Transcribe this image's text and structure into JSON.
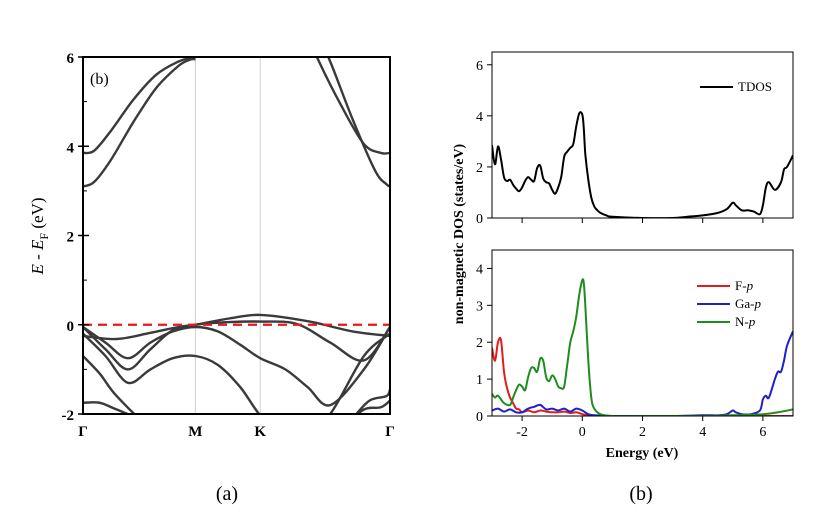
{
  "captions": [
    "(a)",
    "(b)"
  ],
  "chart_data": [
    {
      "type": "line",
      "panel_label": "(b)",
      "ylabel": "E - E_F (eV)",
      "ylabel_parts": [
        "E",
        " - ",
        "E",
        "F",
        " (eV)"
      ],
      "ylim": [
        -2,
        6
      ],
      "yticks": [
        "-2",
        "0",
        "2",
        "4",
        "6"
      ],
      "xticks": [
        {
          "label": "Γ",
          "k": 0
        },
        {
          "label": "M",
          "k": 1
        },
        {
          "label": "K",
          "k": 1.577
        },
        {
          "label": "Γ",
          "k": 2.732
        }
      ],
      "fermi_level": 0,
      "grid": false,
      "bands": [
        {
          "k": [
            0,
            0.3,
            0.6,
            0.85,
            1.0,
            1.3,
            1.577,
            2.0,
            2.4,
            2.732
          ],
          "e": [
            -0.25,
            -0.32,
            -0.18,
            -0.05,
            0.0,
            0.14,
            0.22,
            0.08,
            -0.15,
            -0.25
          ]
        },
        {
          "k": [
            0,
            0.2,
            0.4,
            0.6,
            0.8,
            1.0,
            1.3,
            1.577,
            1.9,
            2.2,
            2.5,
            2.732
          ],
          "e": [
            -0.05,
            -0.55,
            -1.0,
            -0.55,
            -0.12,
            0.0,
            0.06,
            0.07,
            0.02,
            -0.4,
            -0.8,
            -0.05
          ]
        },
        {
          "k": [
            0,
            0.2,
            0.4,
            0.6,
            0.8,
            1.0,
            1.2,
            1.4,
            1.577,
            1.8,
            2.0,
            2.2,
            2.5,
            2.732
          ],
          "e": [
            -0.05,
            -0.4,
            -0.75,
            -0.4,
            -0.15,
            -0.05,
            -0.15,
            -0.45,
            -0.75,
            -1.0,
            -1.4,
            -1.8,
            -1.0,
            -0.05
          ]
        },
        {
          "k": [
            0,
            0.2,
            0.4,
            0.6,
            0.8,
            1.0,
            1.2,
            1.4,
            1.6,
            1.8,
            2.0,
            2.2,
            2.5,
            2.732
          ],
          "e": [
            -0.2,
            -0.7,
            -1.3,
            -1.0,
            -0.75,
            -0.7,
            -0.9,
            -1.4,
            -2.1,
            -2.4,
            -2.3,
            -2.0,
            -0.7,
            -0.2
          ]
        },
        {
          "k": [
            0,
            0.15,
            0.3,
            0.6,
            0.9,
            1.0,
            1.1,
            1.3,
            1.45
          ],
          "e": [
            -0.7,
            -1.1,
            -1.6,
            -2.3,
            -2.6,
            -2.6,
            -2.45,
            -2.2,
            -2.6
          ]
        },
        {
          "k": [
            0,
            0.15,
            0.3,
            0.6,
            0.9,
            1.0,
            1.1,
            1.35
          ],
          "e": [
            -1.75,
            -1.75,
            -1.9,
            -2.2,
            -2.4,
            -2.4,
            -2.2,
            -2.6
          ]
        },
        {
          "k": [
            0,
            0.12,
            0.25
          ],
          "e": [
            -2.3,
            -2.2,
            -2.6
          ]
        },
        {
          "k": [
            2.1,
            2.3,
            2.5,
            2.65,
            2.732
          ],
          "e": [
            -2.6,
            -2.3,
            -1.9,
            -1.85,
            -1.7
          ]
        },
        {
          "k": [
            2.25,
            2.4,
            2.55,
            2.7,
            2.732
          ],
          "e": [
            -2.6,
            -2.1,
            -1.7,
            -1.6,
            -1.45
          ]
        },
        {
          "k": [
            0,
            0.1,
            0.25,
            0.45,
            0.65,
            0.85,
            0.95,
            1.0
          ],
          "e": [
            3.85,
            3.9,
            4.35,
            5.05,
            5.6,
            5.9,
            5.97,
            5.97
          ]
        },
        {
          "k": [
            0,
            0.1,
            0.25,
            0.45,
            0.65,
            0.85,
            0.95,
            1.0
          ],
          "e": [
            3.1,
            3.2,
            3.7,
            4.55,
            5.3,
            5.8,
            5.94,
            5.95
          ]
        },
        {
          "k": [
            2.02,
            2.1,
            2.3,
            2.5,
            2.65,
            2.732
          ],
          "e": [
            6.4,
            5.9,
            4.9,
            4.05,
            3.85,
            3.85
          ]
        },
        {
          "k": [
            2.1,
            2.2,
            2.4,
            2.6,
            2.7,
            2.732
          ],
          "e": [
            6.4,
            5.9,
            4.6,
            3.45,
            3.15,
            3.1
          ]
        }
      ]
    },
    {
      "type": "line",
      "xlabel": "Energy (eV)",
      "ylabel": "non-magnetic DOS (states/eV)",
      "xlim": [
        -3,
        7
      ],
      "xticks": [
        "-2",
        "0",
        "2",
        "4",
        "6"
      ],
      "grid": false,
      "top": {
        "ylim": [
          0,
          6.5
        ],
        "yticks": [
          "0",
          "2",
          "4",
          "6"
        ],
        "legend_position": "top-right",
        "series": [
          {
            "name": "TDOS",
            "color": "#000000",
            "x": [
              -3.0,
              -2.9,
              -2.8,
              -2.7,
              -2.6,
              -2.5,
              -2.4,
              -2.3,
              -2.2,
              -2.1,
              -2.0,
              -1.9,
              -1.8,
              -1.7,
              -1.6,
              -1.5,
              -1.4,
              -1.3,
              -1.2,
              -1.1,
              -1.0,
              -0.9,
              -0.8,
              -0.7,
              -0.6,
              -0.5,
              -0.4,
              -0.3,
              -0.2,
              -0.1,
              0.0,
              0.05,
              0.1,
              0.2,
              0.3,
              0.4,
              0.5,
              0.6,
              0.8,
              1.0,
              2.0,
              3.0,
              3.5,
              4.0,
              4.5,
              4.8,
              5.0,
              5.1,
              5.3,
              5.5,
              5.7,
              5.9,
              6.0,
              6.1,
              6.2,
              6.4,
              6.6,
              6.7,
              6.8,
              7.0
            ],
            "y": [
              2.85,
              2.1,
              2.8,
              2.3,
              1.6,
              1.45,
              1.5,
              1.3,
              1.15,
              1.05,
              1.2,
              1.45,
              1.6,
              1.5,
              1.45,
              1.95,
              2.05,
              1.55,
              1.4,
              1.35,
              1.1,
              0.95,
              1.2,
              1.6,
              2.4,
              2.6,
              2.75,
              2.9,
              3.6,
              4.1,
              4.05,
              3.5,
              2.5,
              1.5,
              0.8,
              0.45,
              0.3,
              0.2,
              0.1,
              0.05,
              0.0,
              0.0,
              0.05,
              0.1,
              0.2,
              0.35,
              0.6,
              0.5,
              0.3,
              0.3,
              0.25,
              0.15,
              0.5,
              1.2,
              1.4,
              1.1,
              1.4,
              1.9,
              2.0,
              2.45
            ]
          }
        ]
      },
      "bottom": {
        "ylim": [
          0,
          4.5
        ],
        "yticks": [
          "0",
          "1",
          "2",
          "3",
          "4"
        ],
        "legend_position": "right",
        "series": [
          {
            "name": "F-p",
            "name_parts": [
              "F-",
              "p"
            ],
            "color": "#e41a1c",
            "x": [
              -3.0,
              -2.9,
              -2.8,
              -2.7,
              -2.6,
              -2.5,
              -2.4,
              -2.3,
              -2.2,
              -2.1,
              -2.0,
              -1.8,
              -1.6,
              -1.4,
              -1.2,
              -1.0,
              -0.8,
              -0.6,
              -0.4,
              -0.2,
              0.0,
              0.2,
              0.4,
              1.0,
              3.0,
              7.0
            ],
            "y": [
              1.85,
              1.5,
              2.0,
              2.05,
              1.2,
              0.75,
              0.5,
              0.35,
              0.2,
              0.18,
              0.1,
              0.15,
              0.1,
              0.15,
              0.12,
              0.1,
              0.1,
              0.12,
              0.08,
              0.1,
              0.05,
              0.02,
              0.0,
              0.0,
              0.0,
              0.0
            ]
          },
          {
            "name": "Ga-p",
            "name_parts": [
              "Ga-",
              "p"
            ],
            "color": "#1f1fcc",
            "x": [
              -3.0,
              -2.8,
              -2.6,
              -2.4,
              -2.2,
              -2.0,
              -1.8,
              -1.6,
              -1.4,
              -1.2,
              -1.0,
              -0.8,
              -0.6,
              -0.4,
              -0.2,
              0.0,
              0.2,
              0.4,
              1.0,
              2.0,
              3.0,
              4.0,
              4.5,
              4.8,
              5.0,
              5.1,
              5.3,
              5.6,
              5.9,
              6.0,
              6.1,
              6.2,
              6.4,
              6.5,
              6.6,
              6.7,
              6.8,
              7.0
            ],
            "y": [
              0.15,
              0.2,
              0.12,
              0.18,
              0.1,
              0.1,
              0.2,
              0.25,
              0.3,
              0.18,
              0.2,
              0.15,
              0.2,
              0.12,
              0.2,
              0.15,
              0.05,
              0.02,
              0.0,
              0.0,
              0.0,
              0.02,
              0.02,
              0.05,
              0.15,
              0.1,
              0.05,
              0.05,
              0.15,
              0.45,
              0.55,
              0.5,
              1.0,
              1.2,
              1.2,
              1.5,
              1.9,
              2.3
            ]
          },
          {
            "name": "N-p",
            "name_parts": [
              "N-",
              "p"
            ],
            "color": "#1e8c1e",
            "x": [
              -3.0,
              -2.9,
              -2.8,
              -2.6,
              -2.4,
              -2.3,
              -2.2,
              -2.1,
              -2.0,
              -1.9,
              -1.8,
              -1.7,
              -1.6,
              -1.5,
              -1.4,
              -1.3,
              -1.2,
              -1.1,
              -1.0,
              -0.9,
              -0.8,
              -0.7,
              -0.6,
              -0.5,
              -0.4,
              -0.3,
              -0.2,
              -0.1,
              0.0,
              0.05,
              0.1,
              0.2,
              0.3,
              0.4,
              0.6,
              1.0,
              2.0,
              3.0,
              4.0,
              5.0,
              6.0,
              6.5,
              7.0
            ],
            "y": [
              0.6,
              0.5,
              0.55,
              0.35,
              0.3,
              0.5,
              0.7,
              0.85,
              0.8,
              0.7,
              1.05,
              1.3,
              1.3,
              1.2,
              1.55,
              1.5,
              1.05,
              0.95,
              1.1,
              1.0,
              0.8,
              0.75,
              0.8,
              1.4,
              2.0,
              2.3,
              2.7,
              3.3,
              3.68,
              3.6,
              3.0,
              1.5,
              0.5,
              0.2,
              0.05,
              0.0,
              0.0,
              0.0,
              0.0,
              0.02,
              0.05,
              0.1,
              0.18
            ]
          }
        ]
      }
    }
  ]
}
